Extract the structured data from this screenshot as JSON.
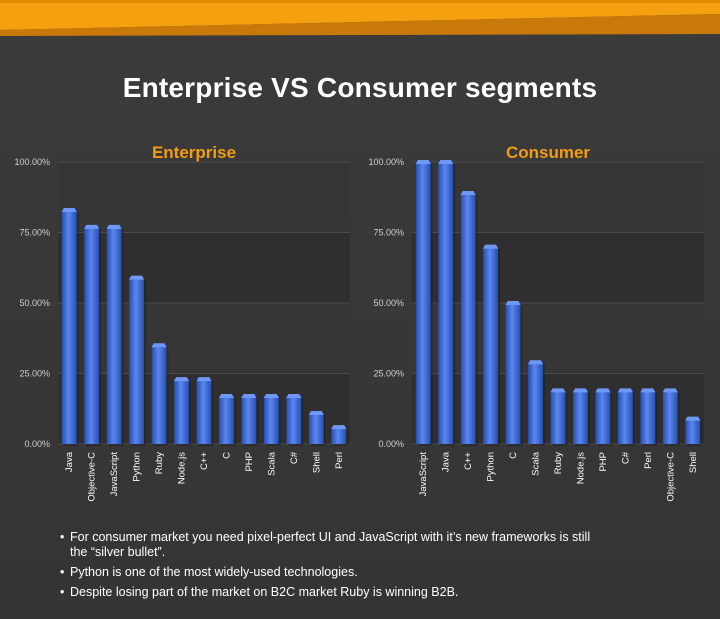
{
  "title": "Enterprise VS Consumer segments",
  "colors": {
    "accent": "#F39C12",
    "background": "#3A3A3A",
    "bar": "#3766D6",
    "bar_light": "#5A86F0",
    "bar_dark": "#264FAE",
    "text": "#FFFFFF",
    "axis_text": "#CFCFCF"
  },
  "chart_data": [
    {
      "type": "bar",
      "title": "Enterprise",
      "xlabel": "",
      "ylabel": "",
      "ylim": [
        0,
        100
      ],
      "yticks": [
        "0.00%",
        "25.00%",
        "50.00%",
        "75.00%",
        "100.00%"
      ],
      "grid": true,
      "categories": [
        "Java",
        "Objective-C",
        "JavaScript",
        "Python",
        "Ruby",
        "Node.js",
        "C++",
        "C",
        "PHP",
        "Scala",
        "C#",
        "Shell",
        "Perl"
      ],
      "values": [
        83,
        77,
        77,
        59,
        35,
        23,
        23,
        17,
        17,
        17,
        17,
        11,
        6
      ]
    },
    {
      "type": "bar",
      "title": "Consumer",
      "xlabel": "",
      "ylabel": "",
      "ylim": [
        0,
        100
      ],
      "yticks": [
        "0.00%",
        "25.00%",
        "50.00%",
        "75.00%",
        "100.00%"
      ],
      "grid": true,
      "categories": [
        "JavaScript",
        "Java",
        "C++",
        "Python",
        "C",
        "Scala",
        "Ruby",
        "Node.js",
        "PHP",
        "C#",
        "Perl",
        "Objective-C",
        "Shell"
      ],
      "values": [
        100,
        100,
        89,
        70,
        50,
        29,
        19,
        19,
        19,
        19,
        19,
        19,
        9
      ]
    }
  ],
  "bullets": [
    "For consumer market you need pixel-perfect UI and JavaScript with it’s new frameworks is still the “silver bullet”.",
    "Python is one of the most widely-used technologies.",
    "Despite losing part of the market on B2C market Ruby is winning B2B."
  ]
}
